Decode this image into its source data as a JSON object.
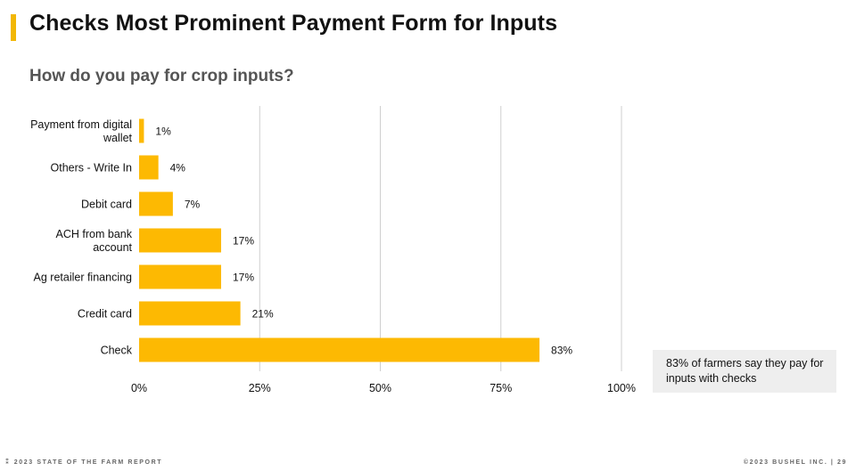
{
  "page": {
    "title": "Checks Most Prominent Payment Form for Inputs",
    "subtitle": "How do you pay for crop inputs?",
    "callout": "83% of farmers say they pay for inputs with checks",
    "footer_left": "2023 STATE OF THE FARM REPORT",
    "footer_right": "©2023 BUSHEL INC.  |  29",
    "footer_logo_icon": "bushel-logo-icon"
  },
  "colors": {
    "accent": "#F2B705",
    "bar": "#FDB902",
    "grid": "#cfcfcf"
  },
  "chart_data": {
    "type": "bar",
    "orientation": "horizontal",
    "categories": [
      [
        "Payment from digital",
        "wallet"
      ],
      [
        "Others - Write In"
      ],
      [
        "Debit card"
      ],
      [
        "ACH from bank",
        "account"
      ],
      [
        "Ag retailer financing"
      ],
      [
        "Credit card"
      ],
      [
        "Check"
      ]
    ],
    "values": [
      1,
      4,
      7,
      17,
      17,
      21,
      83
    ],
    "data_labels": [
      "1%",
      "4%",
      "7%",
      "17%",
      "17%",
      "21%",
      "83%"
    ],
    "xlim": [
      0,
      100
    ],
    "xticks": [
      0,
      25,
      50,
      75,
      100
    ],
    "xtick_labels": [
      "0%",
      "25%",
      "50%",
      "75%",
      "100%"
    ],
    "grid": true,
    "legend": "none",
    "title": "How do you pay for crop inputs?"
  }
}
